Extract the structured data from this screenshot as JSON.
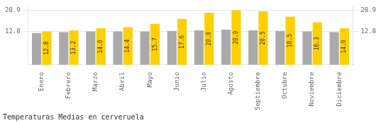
{
  "chart_data": {
    "type": "bar",
    "title": "Temperaturas Medias en cerveruela",
    "categories": [
      "Enero",
      "Febrero",
      "Marzo",
      "Abril",
      "Mayo",
      "Junio",
      "Julio",
      "Agosto",
      "Septiembre",
      "Octubre",
      "Noviembre",
      "Diciembre"
    ],
    "series": [
      {
        "color": "#AAAAAA",
        "values": [
          12.2,
          12.5,
          12.8,
          12.8,
          12.8,
          13.0,
          13.2,
          13.5,
          13.2,
          13.0,
          12.8,
          12.5
        ]
      },
      {
        "color": "#FFD000",
        "values": [
          12.8,
          13.2,
          14.0,
          14.4,
          15.7,
          17.6,
          20.0,
          20.9,
          20.5,
          18.5,
          16.3,
          14.0
        ],
        "data_labels": true,
        "value_labels": [
          "12.8",
          "13.2",
          "14.0",
          "14.4",
          "15.7",
          "17.6",
          "20.0",
          "20.9",
          "20.5",
          "18.5",
          "16.3",
          "14.0"
        ]
      }
    ],
    "ylim": [
      0,
      22.572
    ],
    "yticks": [
      12.8,
      20.9
    ],
    "y2lim": [
      0,
      22.572
    ],
    "y2ticks": [
      12.8,
      20.9
    ],
    "grid": true
  }
}
